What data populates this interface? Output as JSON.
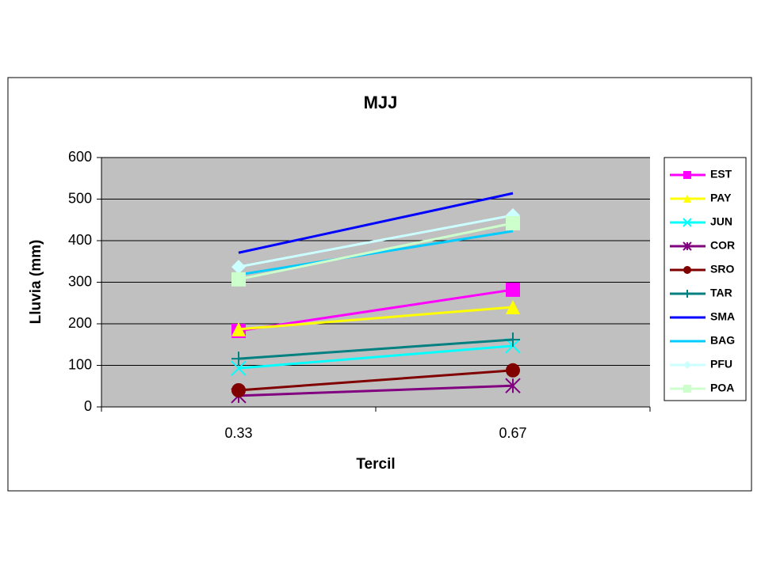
{
  "chart_data": {
    "type": "line",
    "title": "MJJ",
    "x_label": "Tercil",
    "y_label": "Lluvia (mm)",
    "categories": [
      "0.33",
      "0.67"
    ],
    "ylim": [
      0,
      600
    ],
    "yticks": [
      0,
      100,
      200,
      300,
      400,
      500,
      600
    ],
    "grid": true,
    "legend": "right",
    "series": [
      {
        "name": "EST",
        "color": "#ff00ff",
        "marker": "square",
        "values": [
          183,
          282
        ]
      },
      {
        "name": "PAY",
        "color": "#ffff00",
        "marker": "triangle",
        "values": [
          187,
          240
        ]
      },
      {
        "name": "JUN",
        "color": "#00ffff",
        "marker": "x",
        "values": [
          93,
          147
        ]
      },
      {
        "name": "COR",
        "color": "#800080",
        "marker": "star",
        "values": [
          27,
          51
        ]
      },
      {
        "name": "SRO",
        "color": "#800000",
        "marker": "circle",
        "values": [
          40,
          88
        ]
      },
      {
        "name": "TAR",
        "color": "#008080",
        "marker": "plus",
        "values": [
          116,
          162
        ]
      },
      {
        "name": "SMA",
        "color": "#0000ff",
        "marker": "none",
        "values": [
          371,
          514
        ]
      },
      {
        "name": "BAG",
        "color": "#00ccff",
        "marker": "none",
        "values": [
          318,
          423
        ]
      },
      {
        "name": "PFU",
        "color": "#ccffff",
        "marker": "diamond",
        "values": [
          337,
          461
        ]
      },
      {
        "name": "POA",
        "color": "#ccffcc",
        "marker": "square",
        "values": [
          307,
          442
        ]
      }
    ]
  }
}
